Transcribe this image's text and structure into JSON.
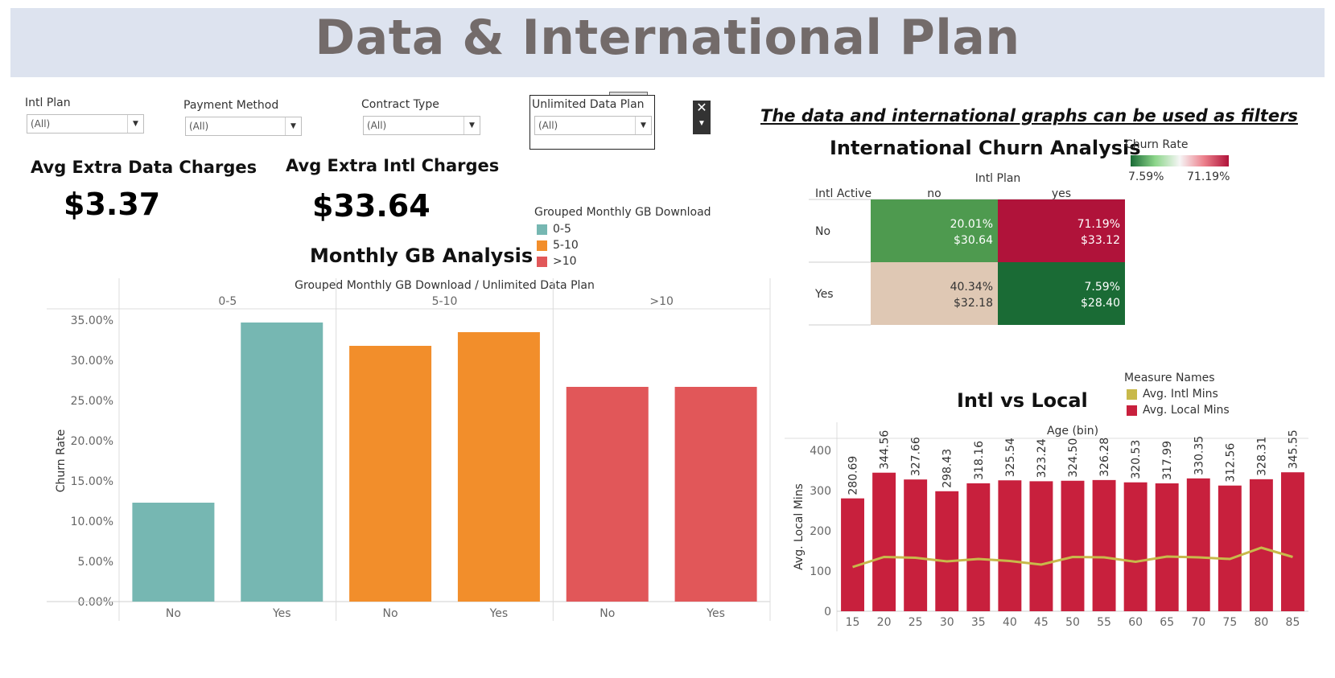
{
  "page": {
    "title": "Data & International Plan"
  },
  "filters": [
    {
      "label": "Intl Plan",
      "value": "(All)"
    },
    {
      "label": "Payment Method",
      "value": "(All)"
    },
    {
      "label": "Contract Type",
      "value": "(All)"
    },
    {
      "label": "Unlimited Data Plan",
      "value": "(All)"
    }
  ],
  "filter_controls": {
    "close_glyph": "✕",
    "menu_glyph": "▼"
  },
  "note": "The data and international graphs can be used as filters",
  "kpis": [
    {
      "label": "Avg Extra Data Charges",
      "value": "$3.37"
    },
    {
      "label": "Avg Extra Intl Charges",
      "value": "$33.64"
    }
  ],
  "gb_legend": {
    "title": "Grouped Monthly GB Download",
    "items": [
      {
        "label": "0-5",
        "color": "#76b7b2"
      },
      {
        "label": "5-10",
        "color": "#f28e2b"
      },
      {
        "label": ">10",
        "color": "#e15759"
      }
    ]
  },
  "intl_churn_legend": {
    "title": "Churn Rate",
    "min": "7.59%",
    "max": "71.19%",
    "color_low": "#1a6b35",
    "color_high": "#b0133a"
  },
  "measure_legend": {
    "title": "Measure Names",
    "items": [
      {
        "label": "Avg. Intl Mins",
        "color": "#c8b94a"
      },
      {
        "label": "Avg. Local Mins",
        "color": "#c8203d"
      }
    ]
  },
  "chart_data": [
    {
      "id": "monthly-gb",
      "type": "bar",
      "title": "Monthly GB Analysis",
      "header": "Grouped Monthly GB Download / Unlimited Data Plan",
      "ylabel": "Churn Rate",
      "ylim": [
        0,
        0.35
      ],
      "yticks": [
        0,
        0.05,
        0.1,
        0.15,
        0.2,
        0.25,
        0.3,
        0.35
      ],
      "ytick_labels": [
        "0.00%",
        "5.00%",
        "10.00%",
        "15.00%",
        "20.00%",
        "25.00%",
        "30.00%",
        "35.00%"
      ],
      "groups": [
        {
          "name": "0-5",
          "color": "#76b7b2",
          "bars": [
            {
              "label": "No",
              "value": 0.123
            },
            {
              "label": "Yes",
              "value": 0.347
            }
          ]
        },
        {
          "name": "5-10",
          "color": "#f28e2b",
          "bars": [
            {
              "label": "No",
              "value": 0.318
            },
            {
              "label": "Yes",
              "value": 0.335
            }
          ]
        },
        {
          "name": ">10",
          "color": "#e15759",
          "bars": [
            {
              "label": "No",
              "value": 0.267
            },
            {
              "label": "Yes",
              "value": 0.267
            }
          ]
        }
      ]
    },
    {
      "id": "intl-churn",
      "type": "heatmap",
      "title": "International Churn Analysis",
      "col_header": "Intl Plan",
      "row_header": "Intl Active",
      "columns": [
        "no",
        "yes"
      ],
      "rows": [
        "No",
        "Yes"
      ],
      "cells": [
        [
          {
            "rate": "20.01%",
            "charge": "$30.64",
            "color": "#4e9a4f"
          },
          {
            "rate": "71.19%",
            "charge": "$33.12",
            "color": "#b0133a"
          }
        ],
        [
          {
            "rate": "40.34%",
            "charge": "$32.18",
            "color": "#dfc8b4"
          },
          {
            "rate": "7.59%",
            "charge": "$28.40",
            "color": "#1a6b35"
          }
        ]
      ]
    },
    {
      "id": "intl-vs-local",
      "type": "bar",
      "title": "Intl vs Local",
      "header": "Age (bin)",
      "ylabel": "Avg. Local Mins",
      "ylim": [
        0,
        420
      ],
      "yticks": [
        0,
        100,
        200,
        300,
        400
      ],
      "x": [
        "15",
        "20",
        "25",
        "30",
        "35",
        "40",
        "45",
        "50",
        "55",
        "60",
        "65",
        "70",
        "75",
        "80",
        "85"
      ],
      "series": [
        {
          "name": "Avg. Local Mins",
          "type": "bar",
          "color": "#c8203d",
          "values": [
            280.69,
            344.56,
            327.66,
            298.43,
            318.16,
            325.54,
            323.24,
            324.5,
            326.28,
            320.53,
            317.99,
            330.35,
            312.56,
            328.31,
            345.55
          ],
          "labels": [
            "280.69",
            "344.56",
            "327.66",
            "298.43",
            "318.16",
            "325.54",
            "323.24",
            "324.50",
            "326.28",
            "320.53",
            "317.99",
            "330.35",
            "312.56",
            "328.31",
            "345.55"
          ]
        },
        {
          "name": "Avg. Intl Mins",
          "type": "line",
          "color": "#c8b94a",
          "values": [
            110,
            135,
            133,
            124,
            130,
            125,
            116,
            135,
            134,
            123,
            136,
            134,
            130,
            158,
            135
          ]
        }
      ]
    }
  ]
}
